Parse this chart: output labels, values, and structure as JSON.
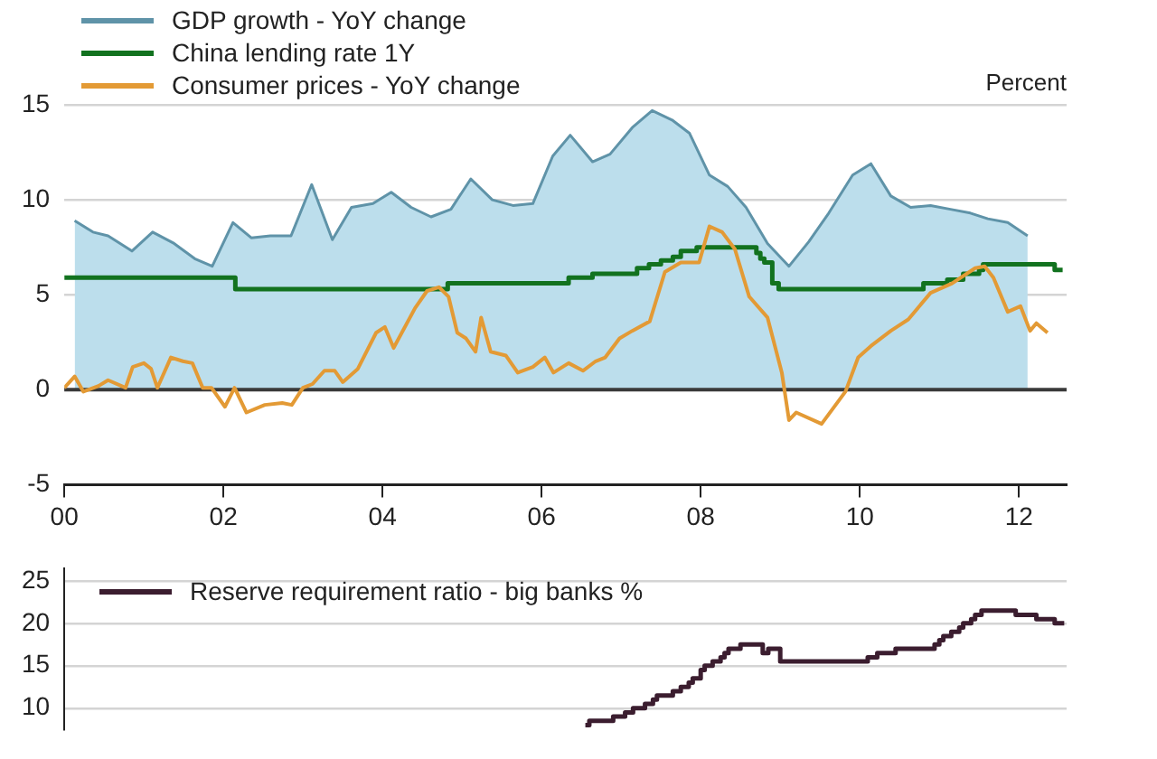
{
  "chart_data": [
    {
      "type": "line",
      "ylabel": "Percent",
      "legend": "top left",
      "grid": "y",
      "xlim": [
        2000,
        2012.6
      ],
      "xticks": [
        {
          "value": 2000,
          "label": "00"
        },
        {
          "value": 2002,
          "label": "02"
        },
        {
          "value": 2004,
          "label": "04"
        },
        {
          "value": 2006,
          "label": "06"
        },
        {
          "value": 2008,
          "label": "08"
        },
        {
          "value": 2010,
          "label": "10"
        },
        {
          "value": 2012,
          "label": "12"
        }
      ],
      "ylim": [
        -5,
        15
      ],
      "yticks": [
        -5,
        0,
        5,
        10,
        15
      ],
      "ref_lines": [
        {
          "axis": "y",
          "value": 0,
          "color": "#3a3a3a"
        }
      ],
      "series": [
        {
          "name": "GDP growth - YoY change",
          "type": "area",
          "color": "#bcdeec",
          "x": [
            2000.13,
            2000.36,
            2000.55,
            2000.85,
            2001.11,
            2001.38,
            2001.64,
            2001.86,
            2002.12,
            2002.35,
            2002.59,
            2002.85,
            2003.11,
            2003.37,
            2003.61,
            2003.88,
            2004.11,
            2004.36,
            2004.61,
            2004.86,
            2005.11,
            2005.38,
            2005.64,
            2005.89,
            2006.14,
            2006.36,
            2006.64,
            2006.86,
            2007.14,
            2007.39,
            2007.64,
            2007.86,
            2008.11,
            2008.34,
            2008.57,
            2008.84,
            2009.11,
            2009.36,
            2009.61,
            2009.91,
            2010.14,
            2010.39,
            2010.64,
            2010.89,
            2011.14,
            2011.39,
            2011.61,
            2011.86,
            2012.11
          ],
          "values": [
            8.9,
            8.3,
            8.1,
            7.3,
            8.3,
            7.7,
            6.9,
            6.5,
            8.8,
            8.0,
            8.1,
            8.1,
            10.8,
            7.9,
            9.6,
            9.8,
            10.4,
            9.6,
            9.1,
            9.5,
            11.1,
            10.0,
            9.7,
            9.8,
            12.3,
            13.4,
            12.0,
            12.4,
            13.8,
            14.7,
            14.2,
            13.5,
            11.3,
            10.7,
            9.6,
            7.7,
            6.5,
            7.8,
            9.3,
            11.3,
            11.9,
            10.2,
            9.6,
            9.7,
            9.5,
            9.3,
            9.0,
            8.8,
            8.1
          ]
        },
        {
          "name": "China lending rate 1Y",
          "type": "step",
          "color": "#12721f",
          "x": [
            2000,
            2002.15,
            2004.82,
            2006.34,
            2006.64,
            2007.2,
            2007.35,
            2007.5,
            2007.65,
            2007.75,
            2007.95,
            2008.7,
            2008.75,
            2008.8,
            2008.9,
            2008.98,
            2010.8,
            2011.1,
            2011.3,
            2011.5,
            2011.55,
            2012.45,
            2012.55
          ],
          "values": [
            5.9,
            5.3,
            5.6,
            5.9,
            6.1,
            6.4,
            6.6,
            6.8,
            7.0,
            7.3,
            7.5,
            7.2,
            6.9,
            6.7,
            5.6,
            5.3,
            5.6,
            5.8,
            6.1,
            6.3,
            6.6,
            6.3,
            6.3
          ]
        },
        {
          "name": "Consumer prices - YoY change",
          "type": "line",
          "color": "#e39a35",
          "x": [
            2000.0,
            2000.13,
            2000.24,
            2000.43,
            2000.55,
            2000.77,
            2000.86,
            2001.0,
            2001.09,
            2001.17,
            2001.34,
            2001.49,
            2001.61,
            2001.74,
            2001.85,
            2002.02,
            2002.14,
            2002.29,
            2002.52,
            2002.74,
            2002.86,
            2003.0,
            2003.12,
            2003.27,
            2003.4,
            2003.5,
            2003.69,
            2003.92,
            2004.03,
            2004.14,
            2004.41,
            2004.56,
            2004.71,
            2004.83,
            2004.94,
            2005.05,
            2005.17,
            2005.24,
            2005.36,
            2005.55,
            2005.7,
            2005.89,
            2006.04,
            2006.15,
            2006.34,
            2006.52,
            2006.68,
            2006.8,
            2006.98,
            2007.14,
            2007.36,
            2007.55,
            2007.75,
            2007.98,
            2008.11,
            2008.27,
            2008.43,
            2008.61,
            2008.84,
            2009.02,
            2009.11,
            2009.2,
            2009.52,
            2009.82,
            2009.98,
            2010.14,
            2010.39,
            2010.61,
            2010.89,
            2011.16,
            2011.45,
            2011.57,
            2011.68,
            2011.86,
            2012.02,
            2012.14,
            2012.22,
            2012.36
          ],
          "values": [
            0.1,
            0.7,
            -0.1,
            0.2,
            0.5,
            0.1,
            1.2,
            1.4,
            1.1,
            0.1,
            1.7,
            1.5,
            1.4,
            0.1,
            0.1,
            -0.9,
            0.1,
            -1.2,
            -0.8,
            -0.7,
            -0.8,
            0.1,
            0.3,
            1.0,
            1.0,
            0.4,
            1.1,
            3.0,
            3.3,
            2.2,
            4.3,
            5.2,
            5.4,
            4.9,
            3.0,
            2.7,
            2.0,
            3.8,
            2.0,
            1.8,
            0.9,
            1.2,
            1.7,
            0.9,
            1.4,
            1.0,
            1.5,
            1.7,
            2.7,
            3.1,
            3.6,
            6.2,
            6.7,
            6.7,
            8.6,
            8.3,
            7.4,
            4.9,
            3.8,
            0.9,
            -1.6,
            -1.2,
            -1.8,
            -0.1,
            1.7,
            2.3,
            3.1,
            3.7,
            5.1,
            5.6,
            6.4,
            6.5,
            5.9,
            4.1,
            4.4,
            3.1,
            3.5,
            3.0
          ]
        }
      ]
    },
    {
      "type": "step",
      "legend": "top left",
      "grid": "y",
      "tick_labels": "y",
      "xlim": [
        2000,
        2012.6
      ],
      "ylim": [
        7.5,
        26.5
      ],
      "yticks": [
        10,
        15,
        20,
        25
      ],
      "series": [
        {
          "name": "Reserve requirement ratio - big banks %",
          "color": "#3b1d2f",
          "x": [
            2006.55,
            2006.6,
            2006.9,
            2007.05,
            2007.15,
            2007.3,
            2007.4,
            2007.45,
            2007.65,
            2007.75,
            2007.85,
            2007.9,
            2008.0,
            2008.05,
            2008.15,
            2008.25,
            2008.3,
            2008.35,
            2008.5,
            2008.78,
            2008.85,
            2009.0,
            2010.1,
            2010.22,
            2010.45,
            2010.94,
            2011.0,
            2011.05,
            2011.15,
            2011.25,
            2011.3,
            2011.4,
            2011.45,
            2011.53,
            2011.96,
            2012.22,
            2012.45,
            2012.57
          ],
          "values": [
            8.0,
            8.5,
            9.0,
            9.5,
            10.0,
            10.5,
            11.0,
            11.5,
            12.0,
            12.5,
            13.0,
            13.5,
            14.5,
            15.0,
            15.5,
            16.0,
            16.5,
            17.0,
            17.5,
            16.5,
            17.0,
            15.5,
            16.0,
            16.5,
            17.0,
            17.5,
            18.0,
            18.5,
            19.0,
            19.5,
            20.0,
            20.5,
            21.0,
            21.5,
            21.0,
            20.5,
            20.0,
            20.0
          ]
        }
      ]
    }
  ]
}
